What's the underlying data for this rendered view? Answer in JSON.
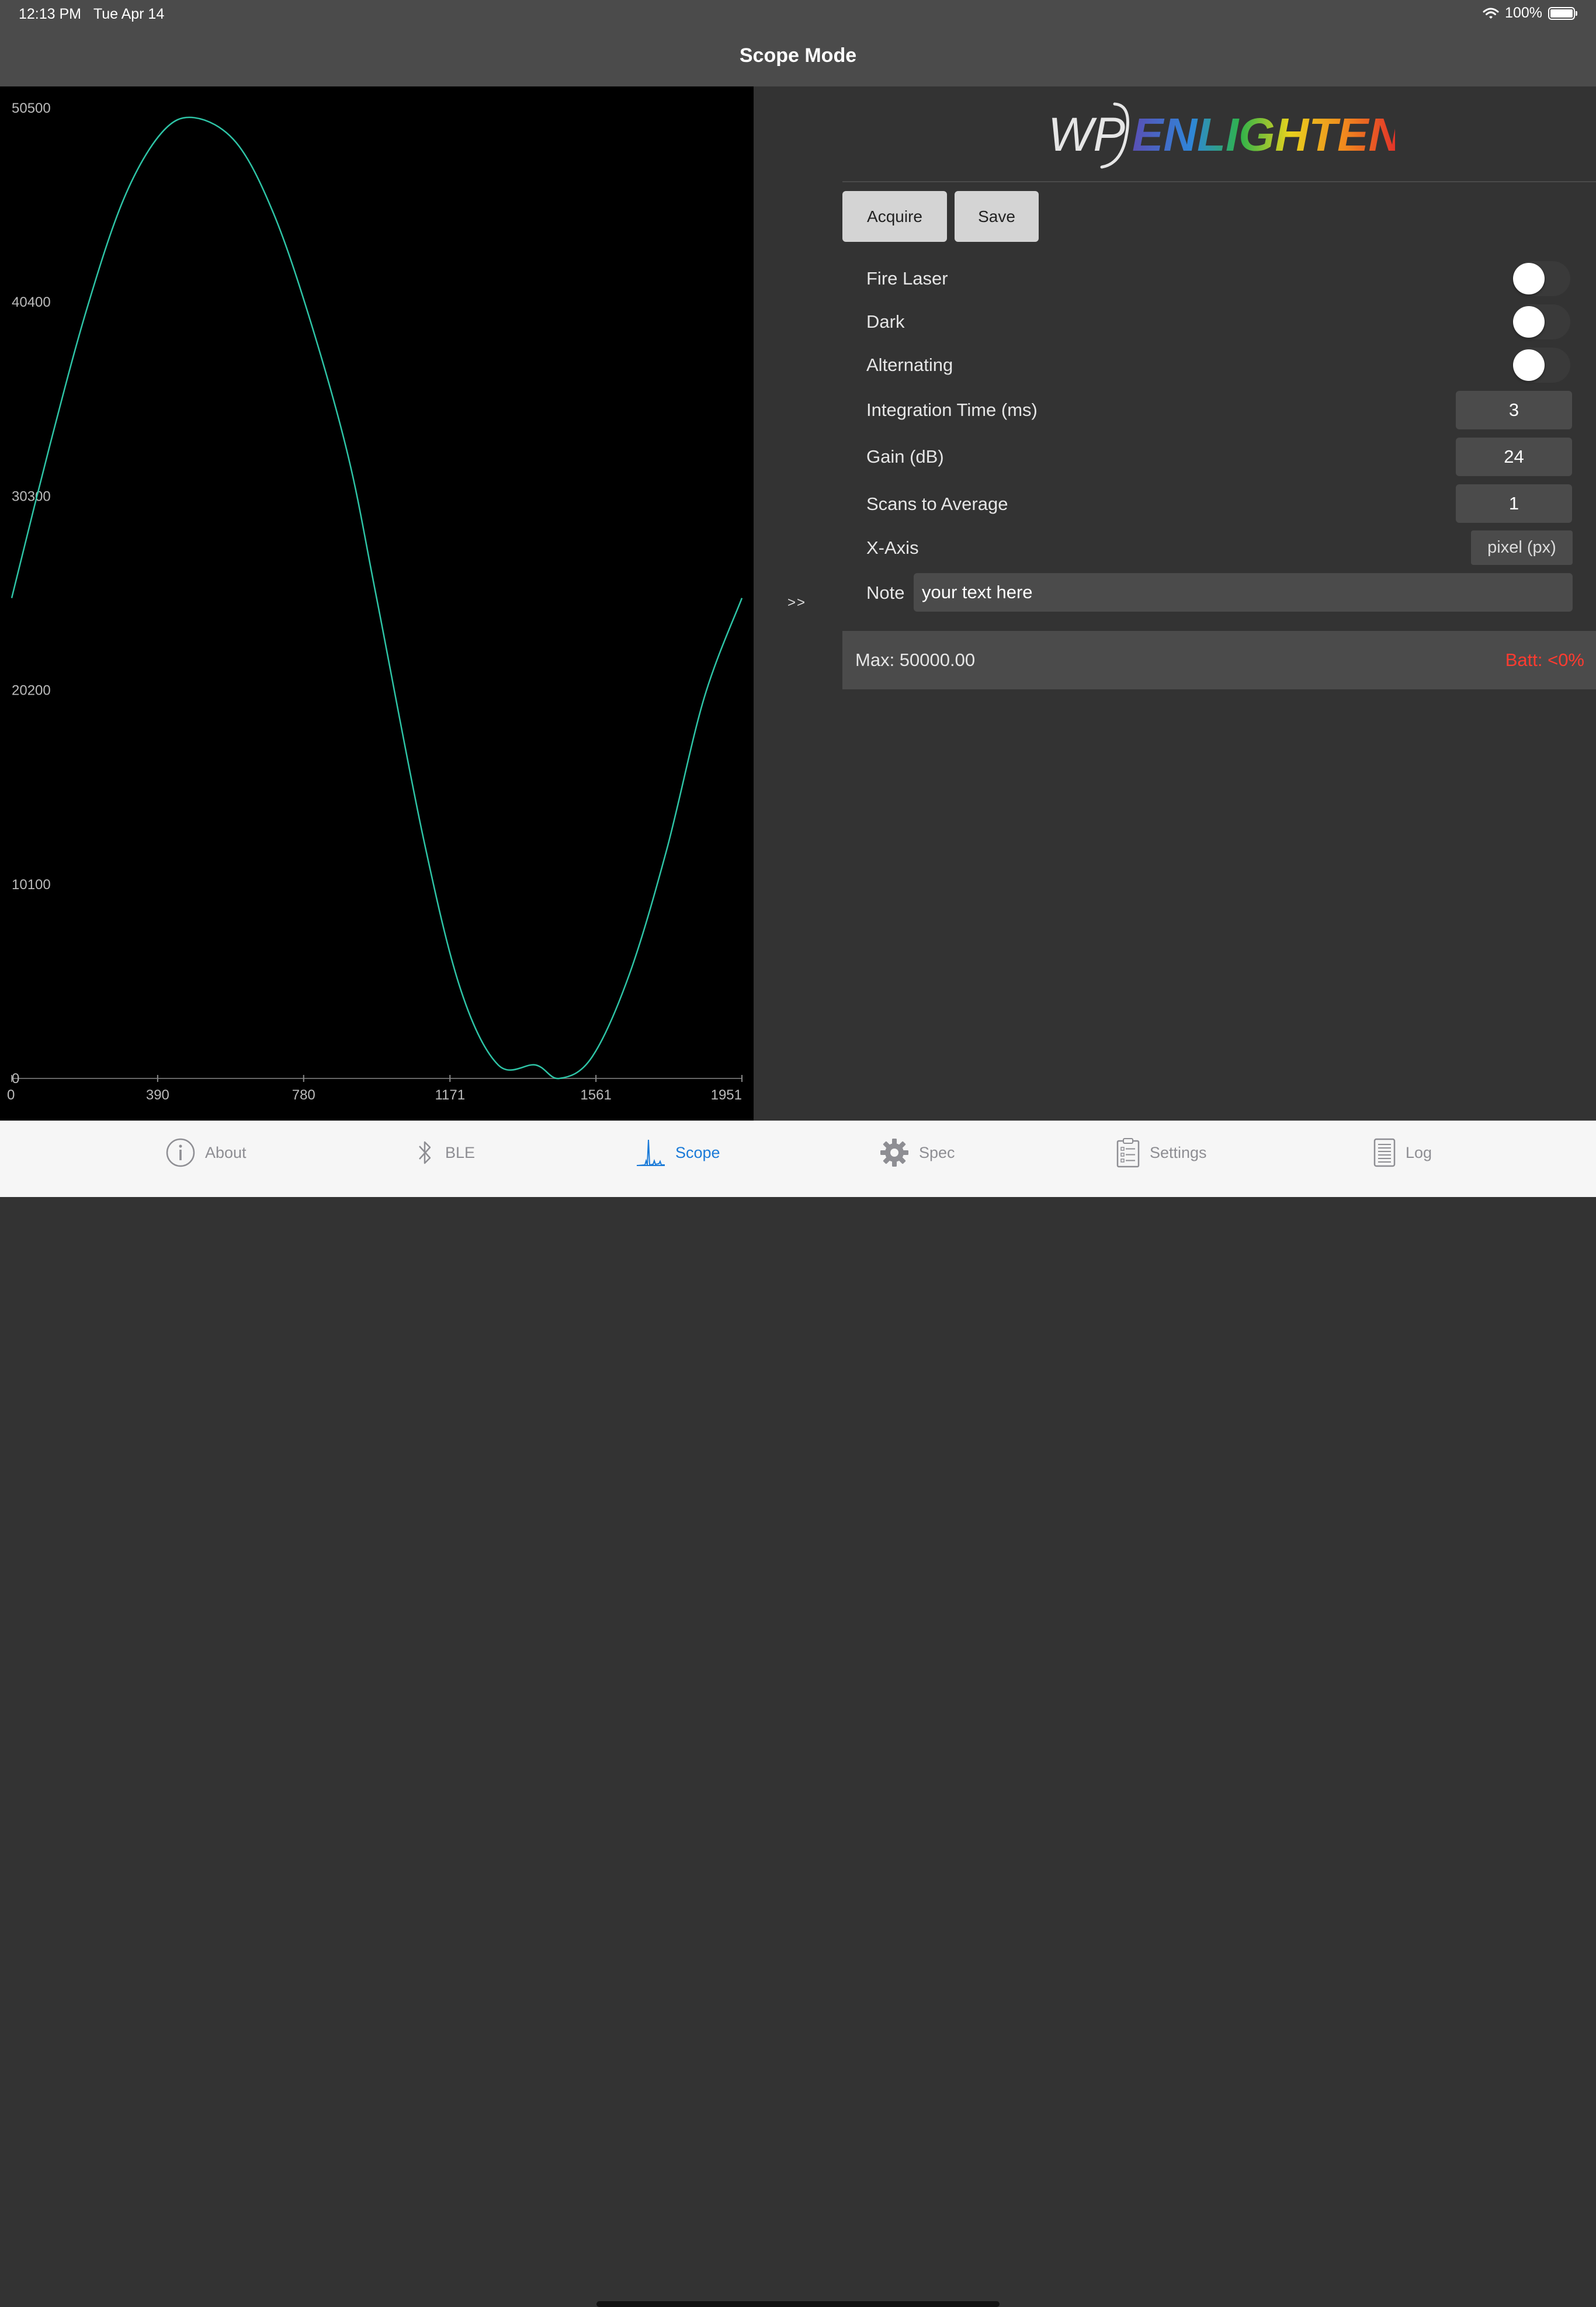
{
  "status_bar": {
    "time": "12:13 PM",
    "date": "Tue Apr 14",
    "battery": "100%",
    "battery_level": 1.0
  },
  "nav": {
    "title": "Scope Mode"
  },
  "chart_data": {
    "type": "line",
    "title": "",
    "xlabel": "",
    "ylabel": "",
    "x_ticks": [
      "0",
      "390",
      "780",
      "1171",
      "1561",
      "1951"
    ],
    "y_ticks": [
      "0",
      "10100",
      "20200",
      "30300",
      "40400",
      "50500"
    ],
    "xlim": [
      0,
      1951
    ],
    "ylim": [
      0,
      50500
    ],
    "grid": false,
    "series": [
      {
        "color": "#2ec4a6",
        "x": [
          0,
          100,
          200,
          300,
          400,
          488,
          600,
          700,
          800,
          900,
          975,
          1100,
          1200,
          1300,
          1400,
          1463,
          1550,
          1650,
          1750,
          1850,
          1951
        ],
        "y": [
          25000,
          32800,
          40000,
          45800,
          49200,
          50000,
          48700,
          45000,
          39300,
          32300,
          25000,
          12500,
          4600,
          700,
          700,
          0,
          1100,
          5400,
          11900,
          19800,
          25000
        ]
      }
    ]
  },
  "panel": {
    "expand_label": ">>",
    "logo_mark": "WP",
    "logo_text": "ENLIGHTEN",
    "buttons": {
      "acquire": "Acquire",
      "save": "Save"
    },
    "toggles": [
      {
        "label": "Fire Laser",
        "on": false
      },
      {
        "label": "Dark",
        "on": false
      },
      {
        "label": "Alternating",
        "on": false
      }
    ],
    "integration_time": {
      "label": "Integration Time (ms)",
      "value": "3"
    },
    "gain": {
      "label": "Gain (dB)",
      "value": "24"
    },
    "scans": {
      "label": "Scans to Average",
      "value": "1"
    },
    "x_axis": {
      "label": "X-Axis",
      "value": "pixel (px)"
    },
    "note": {
      "label": "Note",
      "value": "your text here"
    },
    "status": {
      "max": "Max: 50000.00",
      "batt": "Batt: <0%",
      "batt_color": "#ff3b30"
    }
  },
  "tabs": [
    {
      "label": "About",
      "icon": "info-icon",
      "active": false
    },
    {
      "label": "BLE",
      "icon": "bluetooth-icon",
      "active": false
    },
    {
      "label": "Scope",
      "icon": "spectrum-icon",
      "active": true
    },
    {
      "label": "Spec",
      "icon": "gear-icon",
      "active": false
    },
    {
      "label": "Settings",
      "icon": "clipboard-icon",
      "active": false
    },
    {
      "label": "Log",
      "icon": "document-icon",
      "active": false
    }
  ],
  "colors": {
    "accent": "#1a7ad8",
    "trace": "#2ec4a6"
  }
}
